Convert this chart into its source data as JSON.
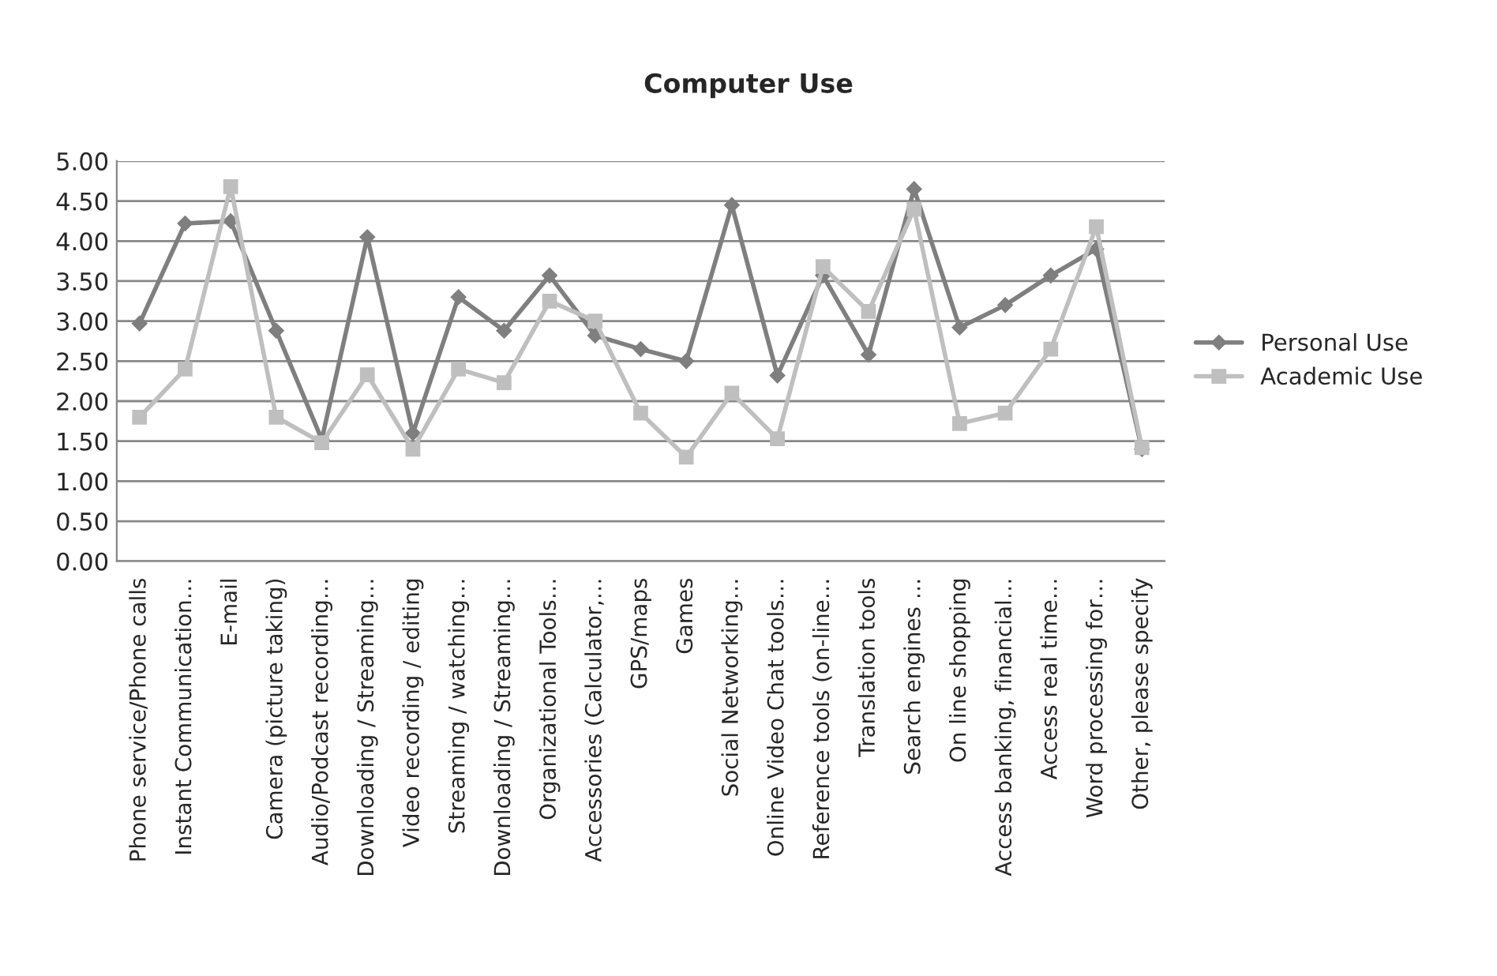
{
  "chart_data": {
    "type": "line",
    "title": "Computer Use",
    "categories": [
      "Phone service/Phone calls",
      "Instant Communication…",
      "E-mail",
      "Camera (picture taking)",
      "Audio/Podcast recording…",
      "Downloading / Streaming…",
      "Video recording / editing",
      "Streaming / watching…",
      "Downloading / Streaming…",
      "Organizational Tools…",
      "Accessories (Calculator,…",
      "GPS/maps",
      "Games",
      "Social Networking…",
      "Online Video Chat tools…",
      "Reference tools (on-line…",
      "Translation tools",
      "Search engines …",
      "On line shopping",
      "Access banking, financial…",
      "Access real time…",
      "Word processing for…",
      "Other, please specify"
    ],
    "series": [
      {
        "name": "Personal Use",
        "color": "#7f7f7f",
        "marker": "diamond",
        "values": [
          2.97,
          4.22,
          4.25,
          2.88,
          1.52,
          4.05,
          1.6,
          3.3,
          2.88,
          3.57,
          2.82,
          2.65,
          2.5,
          4.45,
          2.32,
          3.57,
          2.58,
          4.65,
          2.92,
          3.2,
          3.57,
          3.9,
          1.4
        ]
      },
      {
        "name": "Academic Use",
        "color": "#bfbfbf",
        "marker": "square",
        "values": [
          1.8,
          2.4,
          4.68,
          1.8,
          1.48,
          2.33,
          1.4,
          2.4,
          2.23,
          3.25,
          3.0,
          1.85,
          1.3,
          2.1,
          1.53,
          3.68,
          3.12,
          4.4,
          1.72,
          1.85,
          2.65,
          4.18,
          1.42
        ]
      }
    ],
    "ylim": [
      0,
      5
    ],
    "yticks": [
      {
        "value": 0,
        "label": "0.00"
      },
      {
        "value": 0.5,
        "label": "0.50"
      },
      {
        "value": 1,
        "label": "1.00"
      },
      {
        "value": 1.5,
        "label": "1.50"
      },
      {
        "value": 2,
        "label": "2.00"
      },
      {
        "value": 2.5,
        "label": "2.50"
      },
      {
        "value": 3,
        "label": "3.00"
      },
      {
        "value": 3.5,
        "label": "3.50"
      },
      {
        "value": 4,
        "label": "4.00"
      },
      {
        "value": 4.5,
        "label": "4.50"
      },
      {
        "value": 5,
        "label": "5.00"
      }
    ],
    "grid": "y",
    "legend": "right",
    "line_style": "solid"
  }
}
